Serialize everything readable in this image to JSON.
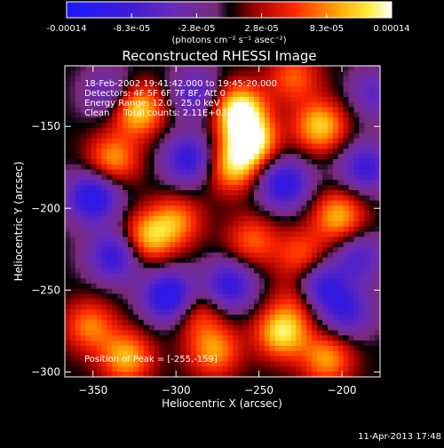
{
  "colorbar": {
    "ticks": [
      "-0.00014",
      "-8.3e-05",
      "-2.8e-05",
      "2.8e-05",
      "8.3e-05",
      "0.00014"
    ],
    "unit_label": "(photons cm⁻² s⁻¹ asec⁻²)"
  },
  "chart_data": {
    "type": "heatmap",
    "title": "Reconstructed RHESSI Image",
    "xlabel": "Heliocentric X (arcsec)",
    "ylabel": "Heliocentric Y (arcsec)",
    "xlim": [
      -367,
      -177
    ],
    "ylim": [
      -303,
      -113
    ],
    "x_ticks": [
      -350,
      -300,
      -250,
      -200
    ],
    "y_ticks": [
      -150,
      -200,
      -250,
      -300
    ],
    "colorbar_range": [
      -0.00014,
      0.00014
    ],
    "colormap": "blue-purple-red-yellow-white",
    "annotations": [
      "18-Feb-2002 19:41:42.000 to 19:45:20.000",
      "Detectors: 4F 5F 6F 7F 8F, Att 0",
      "Energy Range: 12.0 - 25.0 keV",
      "Clean     Total counts: 2.11E+03"
    ],
    "peak_label": "Position of Peak = [-255,-159]",
    "peak": [
      -255,
      -159
    ],
    "blobs": [
      {
        "x": -323,
        "y": -140,
        "v": 0.00012
      },
      {
        "x": -338,
        "y": -170,
        "v": 9e-05
      },
      {
        "x": -317,
        "y": -218,
        "v": 0.0001
      },
      {
        "x": -300,
        "y": -208,
        "v": 8e-05
      },
      {
        "x": -262,
        "y": -140,
        "v": 0.00014
      },
      {
        "x": -255,
        "y": -159,
        "v": 0.00014
      },
      {
        "x": -266,
        "y": -175,
        "v": 0.0001
      },
      {
        "x": -213,
        "y": -150,
        "v": 0.00011
      },
      {
        "x": -229,
        "y": -120,
        "v": 7e-05
      },
      {
        "x": -202,
        "y": -205,
        "v": 0.0001
      },
      {
        "x": -224,
        "y": -229,
        "v": 7e-05
      },
      {
        "x": -254,
        "y": -220,
        "v": 7e-05
      },
      {
        "x": -352,
        "y": -272,
        "v": 8e-05
      },
      {
        "x": -330,
        "y": -291,
        "v": 0.0001
      },
      {
        "x": -287,
        "y": -264,
        "v": 6e-05
      },
      {
        "x": -277,
        "y": -287,
        "v": 9e-05
      },
      {
        "x": -236,
        "y": -276,
        "v": 0.00012
      },
      {
        "x": -225,
        "y": -255,
        "v": 6e-05
      },
      {
        "x": -209,
        "y": -292,
        "v": 9e-05
      },
      {
        "x": -350,
        "y": -193,
        "v": -0.00012
      },
      {
        "x": -292,
        "y": -170,
        "v": -0.0001
      },
      {
        "x": -235,
        "y": -185,
        "v": -0.00011
      },
      {
        "x": -304,
        "y": -254,
        "v": -0.00013
      },
      {
        "x": -337,
        "y": -229,
        "v": -0.0001
      },
      {
        "x": -268,
        "y": -247,
        "v": -0.0001
      },
      {
        "x": -214,
        "y": -248,
        "v": -0.00011
      },
      {
        "x": -186,
        "y": -175,
        "v": -9e-05
      },
      {
        "x": -197,
        "y": -263,
        "v": -8e-05
      },
      {
        "x": -340,
        "y": -130,
        "v": -6e-05
      },
      {
        "x": -288,
        "y": -130,
        "v": -7e-05
      },
      {
        "x": -180,
        "y": -130,
        "v": -6e-05
      },
      {
        "x": -190,
        "y": -230,
        "v": -7e-05
      }
    ]
  },
  "footer": {
    "date": "11-Apr-2013 17:48"
  }
}
